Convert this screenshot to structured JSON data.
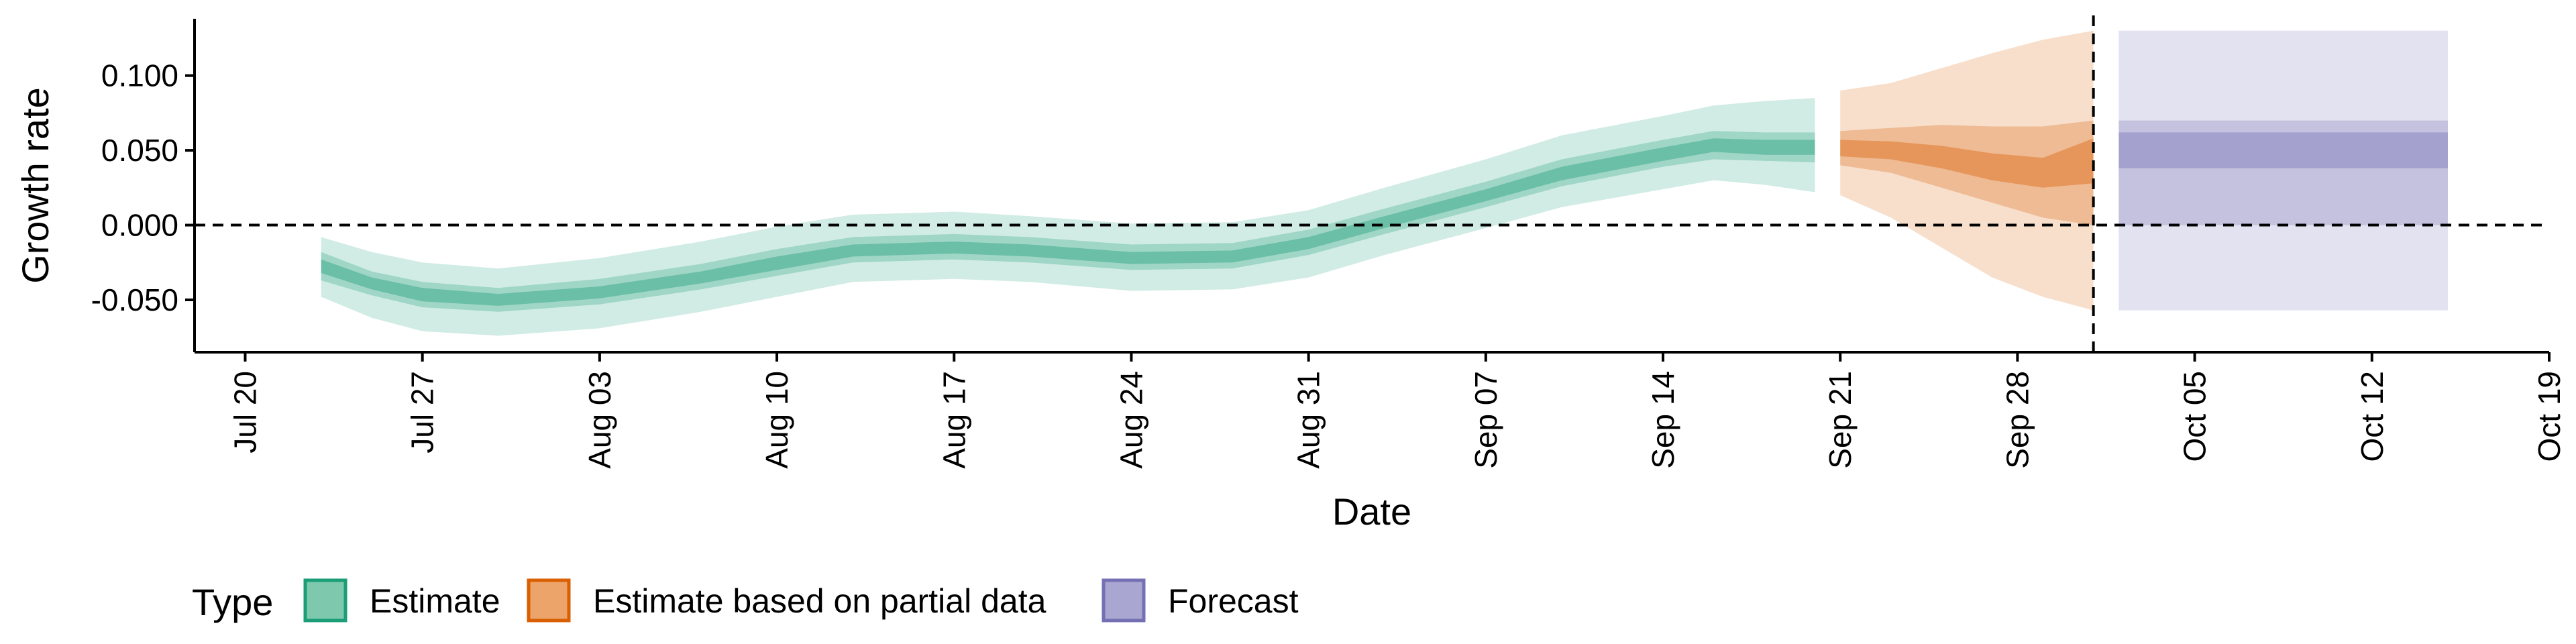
{
  "chart_data": {
    "type": "area",
    "title": "",
    "xlabel": "Date",
    "ylabel": "Growth rate",
    "ylim": [
      -0.085,
      0.138
    ],
    "xlim": [
      "2020-07-18",
      "2020-10-19"
    ],
    "grid": false,
    "y_ticks": [
      -0.05,
      0.0,
      0.05,
      0.1
    ],
    "y_tick_labels": [
      "-0.050",
      "0.000",
      "0.050",
      "0.100"
    ],
    "x_ticks": [
      "2020-07-20",
      "2020-07-27",
      "2020-08-03",
      "2020-08-10",
      "2020-08-17",
      "2020-08-24",
      "2020-08-31",
      "2020-09-07",
      "2020-09-14",
      "2020-09-21",
      "2020-09-28",
      "2020-10-05",
      "2020-10-12",
      "2020-10-19"
    ],
    "x_tick_labels": [
      "Jul 20",
      "Jul 27",
      "Aug 03",
      "Aug 10",
      "Aug 17",
      "Aug 24",
      "Aug 31",
      "Sep 07",
      "Sep 14",
      "Sep 21",
      "Sep 28",
      "Oct 05",
      "Oct 12",
      "Oct 19"
    ],
    "reference_lines": {
      "horizontal_y": 0.0,
      "vertical_date": "2020-10-01"
    },
    "legend": {
      "title": "Type",
      "position": "bottom-left",
      "entries": [
        "Estimate",
        "Estimate based on partial data",
        "Forecast"
      ]
    },
    "series": [
      {
        "name": "Estimate",
        "color": "#1b9e77",
        "points": [
          {
            "date": "2020-07-23",
            "lower90": -0.048,
            "lower50": -0.037,
            "lower20": -0.032,
            "upper20": -0.023,
            "upper50": -0.018,
            "upper90": -0.008
          },
          {
            "date": "2020-07-25",
            "lower90": -0.062,
            "lower50": -0.047,
            "lower20": -0.043,
            "upper20": -0.035,
            "upper50": -0.031,
            "upper90": -0.018
          },
          {
            "date": "2020-07-27",
            "lower90": -0.071,
            "lower50": -0.055,
            "lower20": -0.051,
            "upper20": -0.042,
            "upper50": -0.038,
            "upper90": -0.025
          },
          {
            "date": "2020-07-30",
            "lower90": -0.074,
            "lower50": -0.058,
            "lower20": -0.054,
            "upper20": -0.046,
            "upper50": -0.042,
            "upper90": -0.029
          },
          {
            "date": "2020-08-03",
            "lower90": -0.069,
            "lower50": -0.053,
            "lower20": -0.049,
            "upper20": -0.041,
            "upper50": -0.036,
            "upper90": -0.022
          },
          {
            "date": "2020-08-07",
            "lower90": -0.058,
            "lower50": -0.043,
            "lower20": -0.039,
            "upper20": -0.031,
            "upper50": -0.026,
            "upper90": -0.011
          },
          {
            "date": "2020-08-10",
            "lower90": -0.048,
            "lower50": -0.034,
            "lower20": -0.03,
            "upper20": -0.021,
            "upper50": -0.016,
            "upper90": -0.001
          },
          {
            "date": "2020-08-13",
            "lower90": -0.038,
            "lower50": -0.025,
            "lower20": -0.021,
            "upper20": -0.013,
            "upper50": -0.008,
            "upper90": 0.007
          },
          {
            "date": "2020-08-17",
            "lower90": -0.036,
            "lower50": -0.023,
            "lower20": -0.019,
            "upper20": -0.011,
            "upper50": -0.006,
            "upper90": 0.009
          },
          {
            "date": "2020-08-20",
            "lower90": -0.038,
            "lower50": -0.025,
            "lower20": -0.021,
            "upper20": -0.013,
            "upper50": -0.008,
            "upper90": 0.006
          },
          {
            "date": "2020-08-24",
            "lower90": -0.044,
            "lower50": -0.03,
            "lower20": -0.026,
            "upper20": -0.018,
            "upper50": -0.013,
            "upper90": 0.001
          },
          {
            "date": "2020-08-28",
            "lower90": -0.043,
            "lower50": -0.029,
            "lower20": -0.025,
            "upper20": -0.017,
            "upper50": -0.012,
            "upper90": 0.002
          },
          {
            "date": "2020-08-31",
            "lower90": -0.035,
            "lower50": -0.02,
            "lower20": -0.016,
            "upper20": -0.008,
            "upper50": -0.003,
            "upper90": 0.01
          },
          {
            "date": "2020-09-03",
            "lower90": -0.02,
            "lower50": -0.006,
            "lower20": -0.002,
            "upper20": 0.006,
            "upper50": 0.011,
            "upper90": 0.025
          },
          {
            "date": "2020-09-07",
            "lower90": -0.002,
            "lower50": 0.012,
            "lower20": 0.016,
            "upper20": 0.024,
            "upper50": 0.029,
            "upper90": 0.044
          },
          {
            "date": "2020-09-10",
            "lower90": 0.012,
            "lower50": 0.026,
            "lower20": 0.03,
            "upper20": 0.039,
            "upper50": 0.044,
            "upper90": 0.06
          },
          {
            "date": "2020-09-14",
            "lower90": 0.024,
            "lower50": 0.039,
            "lower20": 0.043,
            "upper20": 0.052,
            "upper50": 0.057,
            "upper90": 0.073
          },
          {
            "date": "2020-09-16",
            "lower90": 0.03,
            "lower50": 0.044,
            "lower20": 0.049,
            "upper20": 0.058,
            "upper50": 0.063,
            "upper90": 0.08
          },
          {
            "date": "2020-09-18",
            "lower90": 0.027,
            "lower50": 0.043,
            "lower20": 0.047,
            "upper20": 0.057,
            "upper50": 0.062,
            "upper90": 0.083
          },
          {
            "date": "2020-09-20",
            "lower90": 0.022,
            "lower50": 0.042,
            "lower20": 0.047,
            "upper20": 0.057,
            "upper50": 0.062,
            "upper90": 0.085
          }
        ]
      },
      {
        "name": "Estimate based on partial data",
        "color": "#d95f02",
        "points": [
          {
            "date": "2020-09-21",
            "lower90": 0.02,
            "lower50": 0.04,
            "lower20": 0.046,
            "upper20": 0.057,
            "upper50": 0.063,
            "upper90": 0.09
          },
          {
            "date": "2020-09-23",
            "lower90": 0.005,
            "lower50": 0.035,
            "lower20": 0.044,
            "upper20": 0.056,
            "upper50": 0.065,
            "upper90": 0.095
          },
          {
            "date": "2020-09-25",
            "lower90": -0.015,
            "lower50": 0.025,
            "lower20": 0.038,
            "upper20": 0.053,
            "upper50": 0.067,
            "upper90": 0.105
          },
          {
            "date": "2020-09-27",
            "lower90": -0.035,
            "lower50": 0.015,
            "lower20": 0.03,
            "upper20": 0.048,
            "upper50": 0.066,
            "upper90": 0.115
          },
          {
            "date": "2020-09-29",
            "lower90": -0.048,
            "lower50": 0.005,
            "lower20": 0.025,
            "upper20": 0.045,
            "upper50": 0.066,
            "upper90": 0.124
          },
          {
            "date": "2020-10-01",
            "lower90": -0.057,
            "lower50": 0.0,
            "lower20": 0.028,
            "upper20": 0.058,
            "upper50": 0.07,
            "upper90": 0.13
          }
        ]
      },
      {
        "name": "Forecast",
        "color": "#7570b3",
        "points": [
          {
            "date": "2020-10-02",
            "lower90": -0.057,
            "lower50": 0.0,
            "lower20": 0.038,
            "upper20": 0.062,
            "upper50": 0.07,
            "upper90": 0.13
          },
          {
            "date": "2020-10-15",
            "lower90": -0.057,
            "lower50": 0.0,
            "lower20": 0.038,
            "upper20": 0.062,
            "upper50": 0.07,
            "upper90": 0.13
          }
        ]
      }
    ]
  }
}
